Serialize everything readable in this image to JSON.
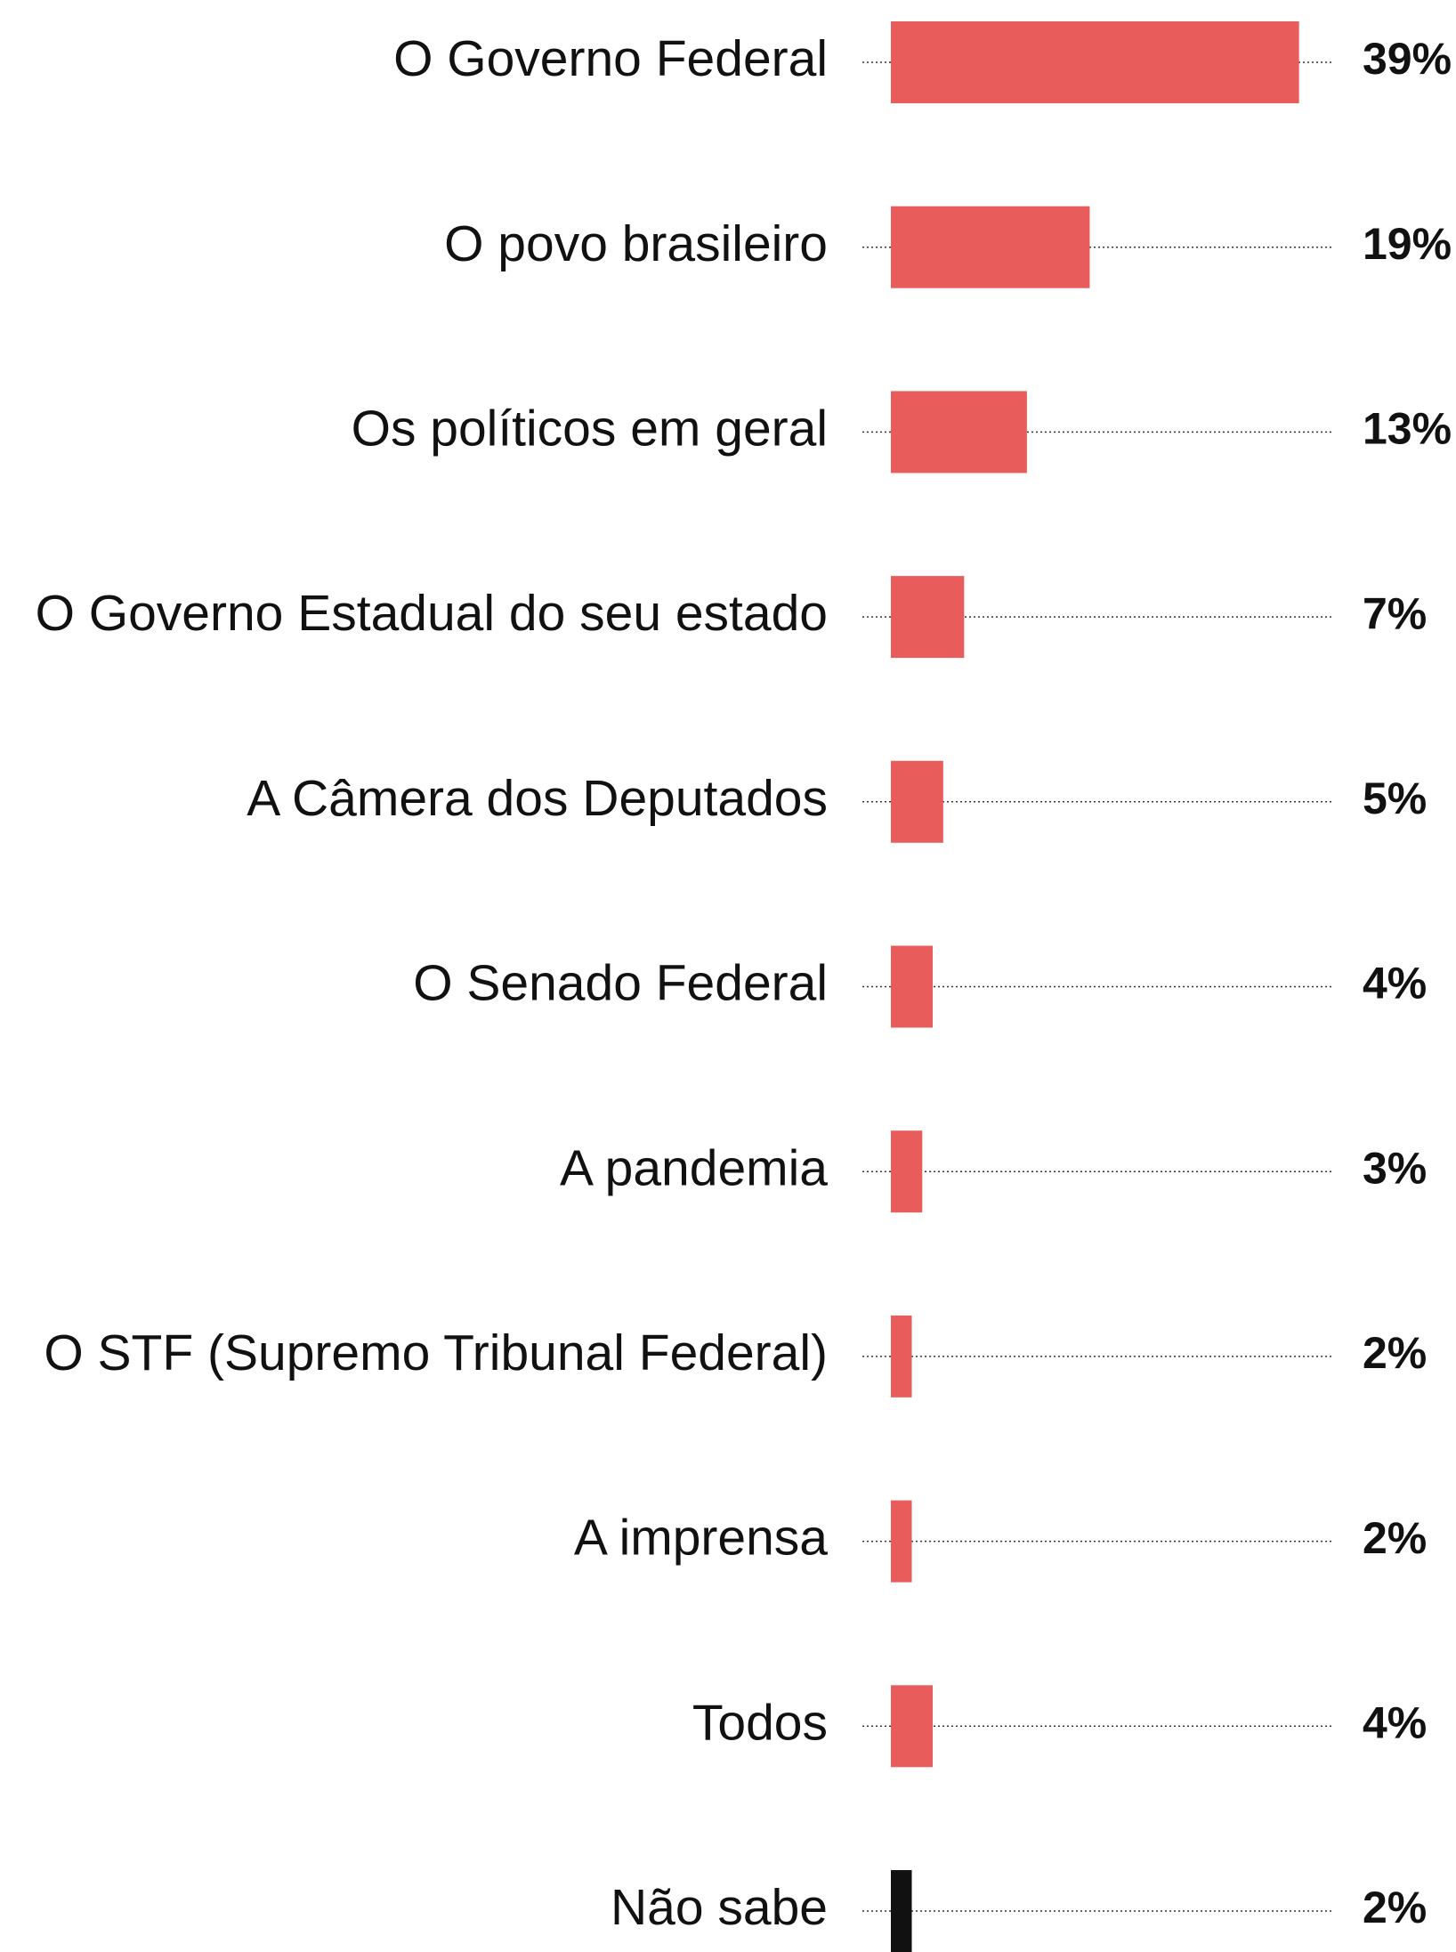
{
  "chart_data": {
    "type": "barh",
    "categories": [
      "O Governo Federal",
      "O povo brasileiro",
      "Os políticos em geral",
      "O Governo Estadual do seu estado",
      "A Câmera dos Deputados",
      "O Senado Federal",
      "A pandemia",
      "O STF (Supremo Tribunal Federal)",
      "A imprensa",
      "Todos",
      "Não sabe"
    ],
    "values": [
      39,
      19,
      13,
      7,
      5,
      4,
      3,
      2,
      2,
      4,
      2
    ],
    "value_labels": [
      "39%",
      "19%",
      "13%",
      "7%",
      "5%",
      "4%",
      "3%",
      "2%",
      "2%",
      "4%",
      "2%"
    ],
    "colors": [
      "#e85d5b",
      "#e85d5b",
      "#e85d5b",
      "#e85d5b",
      "#e85d5b",
      "#e85d5b",
      "#e85d5b",
      "#e85d5b",
      "#e85d5b",
      "#e85d5b",
      "#111111"
    ]
  }
}
